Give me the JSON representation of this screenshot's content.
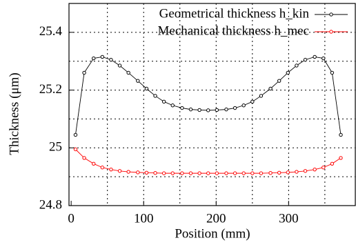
{
  "chart_data": {
    "type": "line",
    "xlabel": "Position (mm)",
    "ylabel": "Thickness (μm)",
    "xlim": [
      -3,
      392
    ],
    "ylim": [
      24.8,
      25.5
    ],
    "xticks": [
      0,
      100,
      200,
      300
    ],
    "xgrid": [
      50,
      100,
      150,
      200,
      250,
      300,
      350
    ],
    "yticks": [
      24.8,
      25,
      25.2,
      25.4
    ],
    "ygrid": [
      24.9,
      25,
      25.1,
      25.2,
      25.3,
      25.4
    ],
    "grid": true,
    "legend": "upper right",
    "x": [
      6,
      18,
      31,
      43,
      55,
      67,
      79,
      92,
      104,
      116,
      128,
      140,
      153,
      165,
      177,
      189,
      201,
      214,
      226,
      238,
      250,
      262,
      275,
      287,
      299,
      311,
      323,
      336,
      348,
      360,
      372
    ],
    "series": [
      {
        "name": "Geometrical thickness h_kin",
        "color": "#000000",
        "values": [
          25.045,
          25.26,
          25.31,
          25.315,
          25.305,
          25.285,
          25.26,
          25.232,
          25.205,
          25.18,
          25.16,
          25.147,
          25.138,
          25.133,
          25.131,
          25.13,
          25.131,
          25.133,
          25.138,
          25.147,
          25.16,
          25.18,
          25.205,
          25.232,
          25.26,
          25.285,
          25.305,
          25.315,
          25.31,
          25.26,
          25.045
        ]
      },
      {
        "name": "Mechanical thickness h_mec",
        "color": "#ff0000",
        "values": [
          24.995,
          24.965,
          24.945,
          24.932,
          24.925,
          24.92,
          24.917,
          24.915,
          24.914,
          24.913,
          24.912,
          24.912,
          24.912,
          24.912,
          24.912,
          24.912,
          24.912,
          24.912,
          24.912,
          24.912,
          24.912,
          24.912,
          24.913,
          24.914,
          24.915,
          24.917,
          24.92,
          24.925,
          24.932,
          24.945,
          24.965
        ]
      }
    ]
  }
}
